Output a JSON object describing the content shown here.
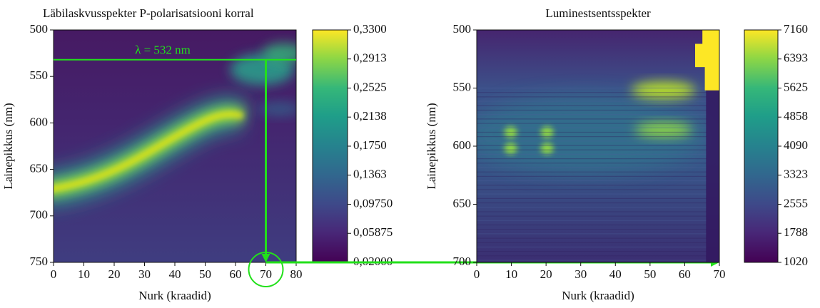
{
  "chart_data": [
    {
      "type": "heatmap",
      "title": "Läbilaskvusspekter P-polarisatsiooni korral",
      "x_label": "Nurk (kraadid)",
      "y_label": "Lainepikkus (nm)",
      "xlim": [
        0,
        80
      ],
      "xticks": [
        0,
        10,
        20,
        30,
        40,
        50,
        60,
        70,
        80
      ],
      "ylim": [
        750,
        500
      ],
      "yticks": [
        500,
        550,
        600,
        650,
        700,
        750
      ],
      "colormap": "viridis",
      "clim": [
        0.02,
        0.33
      ],
      "cticks": [
        {
          "value": 0.02,
          "label": "0,02000"
        },
        {
          "value": 0.05875,
          "label": "0,05875"
        },
        {
          "value": 0.0975,
          "label": "0,09750"
        },
        {
          "value": 0.1363,
          "label": "0,1363"
        },
        {
          "value": 0.175,
          "label": "0,1750"
        },
        {
          "value": 0.2138,
          "label": "0,2138"
        },
        {
          "value": 0.2525,
          "label": "0,2525"
        },
        {
          "value": 0.2913,
          "label": "0,2913"
        },
        {
          "value": 0.33,
          "label": "0,3300"
        }
      ],
      "annotation": "λ = 532 nm",
      "hline": 532,
      "annotation_color": "#22e01a"
    },
    {
      "type": "heatmap",
      "title": "Luminestsentsspekter",
      "x_label": "Nurk (kraadid)",
      "y_label": "Lainepikkus (nm)",
      "xlim": [
        0,
        70
      ],
      "xticks": [
        0,
        10,
        20,
        30,
        40,
        50,
        60,
        70
      ],
      "ylim": [
        700,
        500
      ],
      "yticks": [
        500,
        550,
        600,
        650,
        700
      ],
      "colormap": "viridis",
      "clim": [
        1020,
        7160
      ],
      "cticks": [
        1020,
        1788,
        2555,
        3323,
        4090,
        4858,
        5625,
        6393,
        7160
      ]
    }
  ]
}
